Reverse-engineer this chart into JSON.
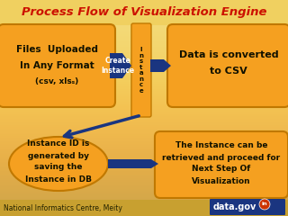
{
  "title": "Process Flow of Visualization Engine",
  "title_color": "#CC1100",
  "bg_top_color": "#F0D060",
  "bg_bottom_color": "#D4A830",
  "box_color": "#F5A020",
  "box_stroke": "#C07800",
  "arrow_color": "#1A3580",
  "text_color": "#111100",
  "footer_text": "National Informatics Centre, Meity",
  "box1_lines": [
    "Files  Uploaded",
    "In Any Format",
    "(csv, xlsₛ)"
  ],
  "box2_lines": [
    "Data is converted",
    "to CSV"
  ],
  "box3_lines": [
    "Instance ID is",
    "generated by",
    "saving the",
    "Instance in DB"
  ],
  "box4_lines": [
    "The Instance can be",
    "retrieved and proceed for",
    "Next Step Of",
    "Visualization"
  ],
  "create_label": [
    "Create",
    "Instance"
  ],
  "instance_label": [
    "I",
    "n",
    "s",
    "t",
    "a",
    "n",
    "c",
    "e"
  ],
  "datagov_bg": "#1A3580",
  "datagov_orange": "#F5A020"
}
